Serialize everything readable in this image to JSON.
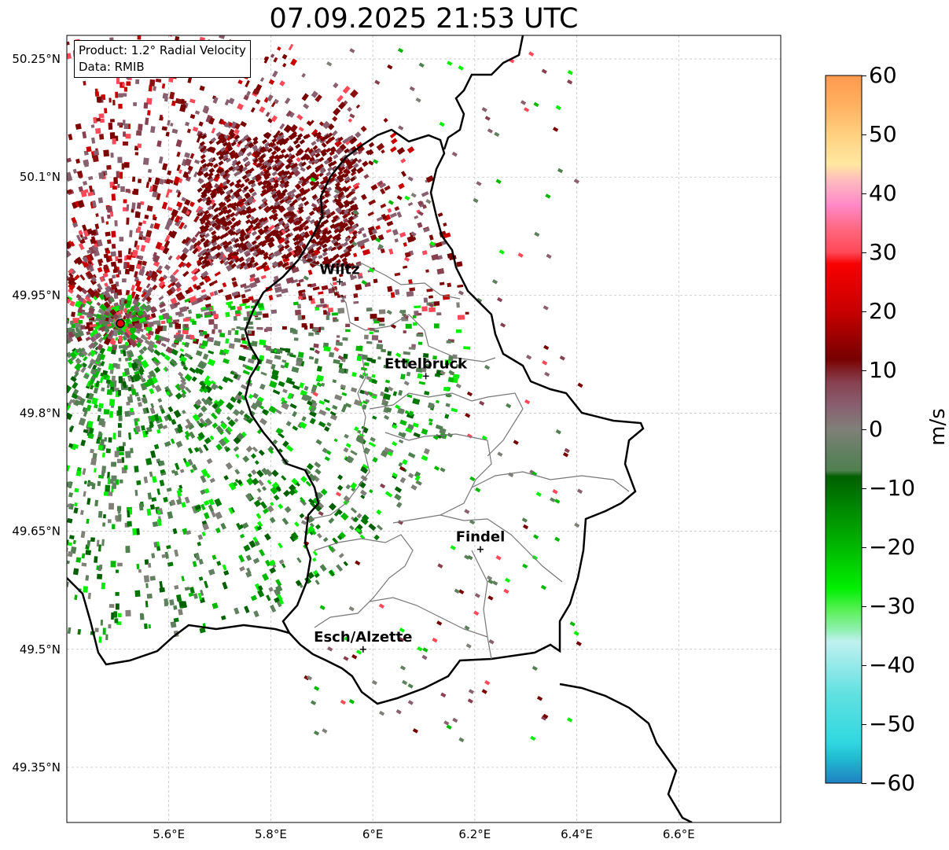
{
  "title": "07.09.2025 21:53 UTC",
  "info": {
    "product": "Product: 1.2° Radial Velocity",
    "data": "Data: RMIB"
  },
  "map": {
    "lon_range": [
      5.4,
      6.8
    ],
    "lat_range": [
      49.28,
      50.28
    ],
    "x_ticks": [
      {
        "value": 5.6,
        "label": "5.6°E"
      },
      {
        "value": 5.8,
        "label": "5.8°E"
      },
      {
        "value": 6.0,
        "label": "6°E"
      },
      {
        "value": 6.2,
        "label": "6.2°E"
      },
      {
        "value": 6.4,
        "label": "6.4°E"
      },
      {
        "value": 6.6,
        "label": "6.6°E"
      }
    ],
    "y_ticks": [
      {
        "value": 50.25,
        "label": "50.25°N"
      },
      {
        "value": 50.1,
        "label": "50.1°N"
      },
      {
        "value": 49.95,
        "label": "49.95°N"
      },
      {
        "value": 49.8,
        "label": "49.8°N"
      },
      {
        "value": 49.65,
        "label": "49.65°N"
      },
      {
        "value": 49.5,
        "label": "49.5°N"
      },
      {
        "value": 49.35,
        "label": "49.35°N"
      }
    ],
    "radar_site": {
      "lon": 5.505,
      "lat": 49.914
    },
    "cities": [
      {
        "name": "Wiltz",
        "lon": 5.935,
        "lat": 49.967
      },
      {
        "name": "Ettelbruck",
        "lon": 6.104,
        "lat": 49.847
      },
      {
        "name": "Findel",
        "lon": 6.211,
        "lat": 49.627
      },
      {
        "name": "Esch/Alzette",
        "lon": 5.981,
        "lat": 49.5
      }
    ]
  },
  "colorbar": {
    "min": -60,
    "max": 60,
    "unit": "m/s",
    "ticks": [
      60,
      50,
      40,
      30,
      20,
      10,
      0,
      -10,
      -20,
      -30,
      -40,
      -50,
      -60
    ],
    "tick_labels": [
      "60",
      "50",
      "40",
      "30",
      "20",
      "10",
      "0",
      "−10",
      "−20",
      "−30",
      "−40",
      "−50",
      "−60"
    ],
    "stops": [
      {
        "value": 60,
        "color": "#ff9a50"
      },
      {
        "value": 55,
        "color": "#ffb060"
      },
      {
        "value": 50,
        "color": "#ffd080"
      },
      {
        "value": 45,
        "color": "#ffe8a0"
      },
      {
        "value": 42,
        "color": "#ffb8c0"
      },
      {
        "value": 38,
        "color": "#ff88c8"
      },
      {
        "value": 34,
        "color": "#ff6880"
      },
      {
        "value": 30,
        "color": "#ff4858"
      },
      {
        "value": 28,
        "color": "#f80000"
      },
      {
        "value": 20,
        "color": "#c80000"
      },
      {
        "value": 12,
        "color": "#780000"
      },
      {
        "value": 8,
        "color": "#884050"
      },
      {
        "value": 4,
        "color": "#886070"
      },
      {
        "value": 0,
        "color": "#808078"
      },
      {
        "value": -4,
        "color": "#608060"
      },
      {
        "value": -7,
        "color": "#508050"
      },
      {
        "value": -8,
        "color": "#006000"
      },
      {
        "value": -20,
        "color": "#00b800"
      },
      {
        "value": -27,
        "color": "#00f000"
      },
      {
        "value": -31,
        "color": "#60f060"
      },
      {
        "value": -34,
        "color": "#90f0b0"
      },
      {
        "value": -36,
        "color": "#c0f0f0"
      },
      {
        "value": -45,
        "color": "#60e0e0"
      },
      {
        "value": -53,
        "color": "#30d8e0"
      },
      {
        "value": -56,
        "color": "#20b8d0"
      },
      {
        "value": -60,
        "color": "#2080c0"
      }
    ]
  }
}
